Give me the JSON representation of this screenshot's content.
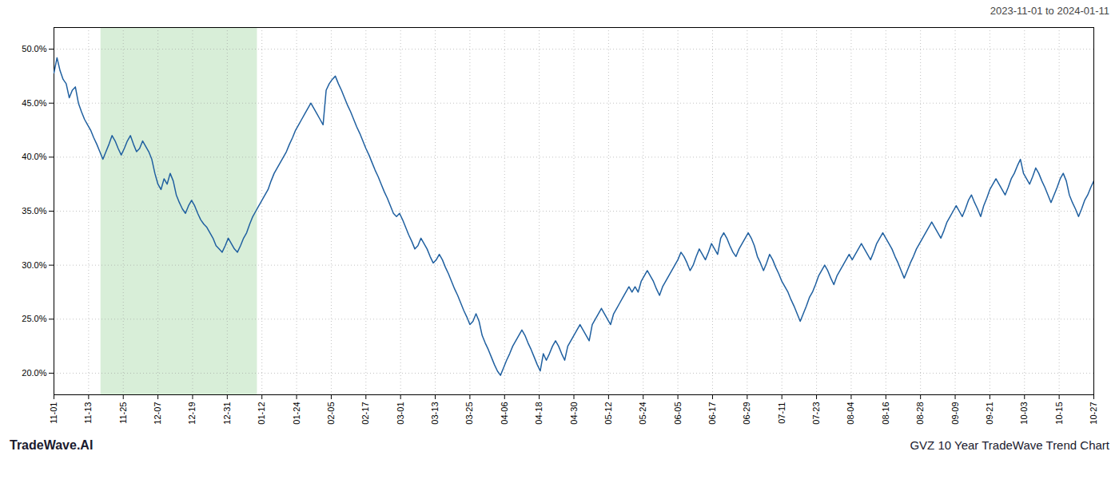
{
  "chart_data": {
    "type": "line",
    "title": "GVZ 10 Year TradeWave Trend Chart",
    "subtitle": "2023-11-01 to 2024-01-11",
    "caption": "TradeWave.AI",
    "color": "#2060a0",
    "grid": true,
    "highlight": {
      "start": 15.345,
      "end": 66.495,
      "color": "#d8eed8"
    },
    "xlim": [
      0,
      340
    ],
    "xticks": [
      {
        "value": 0,
        "label": "11-01"
      },
      {
        "value": 11.3333,
        "label": "11-13"
      },
      {
        "value": 22.6667,
        "label": "11-25"
      },
      {
        "value": 34,
        "label": "12-07"
      },
      {
        "value": 45.3333,
        "label": "12-19"
      },
      {
        "value": 56.6667,
        "label": "12-31"
      },
      {
        "value": 68,
        "label": "01-12"
      },
      {
        "value": 79.3333,
        "label": "01-24"
      },
      {
        "value": 90.6667,
        "label": "02-05"
      },
      {
        "value": 102,
        "label": "02-17"
      },
      {
        "value": 113.3333,
        "label": "03-01"
      },
      {
        "value": 124.6667,
        "label": "03-13"
      },
      {
        "value": 136,
        "label": "03-25"
      },
      {
        "value": 147.3333,
        "label": "04-06"
      },
      {
        "value": 158.6667,
        "label": "04-18"
      },
      {
        "value": 170,
        "label": "04-30"
      },
      {
        "value": 181.3333,
        "label": "05-12"
      },
      {
        "value": 192.6667,
        "label": "05-24"
      },
      {
        "value": 204,
        "label": "06-05"
      },
      {
        "value": 215.3333,
        "label": "06-17"
      },
      {
        "value": 226.6667,
        "label": "06-29"
      },
      {
        "value": 238,
        "label": "07-11"
      },
      {
        "value": 249.3333,
        "label": "07-23"
      },
      {
        "value": 260.6667,
        "label": "08-04"
      },
      {
        "value": 272,
        "label": "08-16"
      },
      {
        "value": 283.3333,
        "label": "08-28"
      },
      {
        "value": 294.6667,
        "label": "09-09"
      },
      {
        "value": 306,
        "label": "09-21"
      },
      {
        "value": 317.3333,
        "label": "10-03"
      },
      {
        "value": 328.6667,
        "label": "10-15"
      },
      {
        "value": 340,
        "label": "10-27"
      }
    ],
    "ylim": [
      18.0,
      52.0
    ],
    "yticks": [
      {
        "value": 20.0,
        "label": "20.0%"
      },
      {
        "value": 25.0,
        "label": "25.0%"
      },
      {
        "value": 30.0,
        "label": "30.0%"
      },
      {
        "value": 35.0,
        "label": "35.0%"
      },
      {
        "value": 40.0,
        "label": "40.0%"
      },
      {
        "value": 45.0,
        "label": "45.0%"
      },
      {
        "value": 50.0,
        "label": "50.0%"
      }
    ],
    "values": [
      47.8,
      49.2,
      48.0,
      47.2,
      46.8,
      45.5,
      46.2,
      46.5,
      45.0,
      44.2,
      43.5,
      43.0,
      42.5,
      41.8,
      41.2,
      40.5,
      39.8,
      40.5,
      41.2,
      42.0,
      41.5,
      40.8,
      40.2,
      40.8,
      41.5,
      42.0,
      41.2,
      40.5,
      40.8,
      41.5,
      41.0,
      40.5,
      39.8,
      38.5,
      37.5,
      37.0,
      38.0,
      37.5,
      38.5,
      37.8,
      36.5,
      35.8,
      35.2,
      34.8,
      35.5,
      36.0,
      35.5,
      34.8,
      34.2,
      33.8,
      33.5,
      33.0,
      32.5,
      31.8,
      31.5,
      31.2,
      31.8,
      32.5,
      32.0,
      31.5,
      31.2,
      31.8,
      32.5,
      33.0,
      33.8,
      34.5,
      35.0,
      35.5,
      36.0,
      36.5,
      37.0,
      37.8,
      38.5,
      39.0,
      39.5,
      40.0,
      40.5,
      41.2,
      41.8,
      42.5,
      43.0,
      43.5,
      44.0,
      44.5,
      45.0,
      44.5,
      44.0,
      43.5,
      43.0,
      46.2,
      46.8,
      47.2,
      47.5,
      46.8,
      46.2,
      45.5,
      44.8,
      44.2,
      43.5,
      42.8,
      42.2,
      41.5,
      40.8,
      40.2,
      39.5,
      38.8,
      38.2,
      37.5,
      36.8,
      36.2,
      35.5,
      34.8,
      34.5,
      34.8,
      34.2,
      33.5,
      32.8,
      32.2,
      31.5,
      31.8,
      32.5,
      32.0,
      31.5,
      30.8,
      30.2,
      30.5,
      31.0,
      30.5,
      29.8,
      29.2,
      28.5,
      27.8,
      27.2,
      26.5,
      25.8,
      25.2,
      24.5,
      24.8,
      25.5,
      24.8,
      23.5,
      22.8,
      22.2,
      21.5,
      20.8,
      20.2,
      19.8,
      20.5,
      21.2,
      21.8,
      22.5,
      23.0,
      23.5,
      24.0,
      23.5,
      22.8,
      22.2,
      21.5,
      20.8,
      20.2,
      21.8,
      21.2,
      21.8,
      22.5,
      23.0,
      22.5,
      21.8,
      21.2,
      22.5,
      23.0,
      23.5,
      24.0,
      24.5,
      24.0,
      23.5,
      23.0,
      24.5,
      25.0,
      25.5,
      26.0,
      25.5,
      25.0,
      24.5,
      25.5,
      26.0,
      26.5,
      27.0,
      27.5,
      28.0,
      27.5,
      28.0,
      27.5,
      28.5,
      29.0,
      29.5,
      29.0,
      28.5,
      27.8,
      27.2,
      28.0,
      28.5,
      29.0,
      29.5,
      30.0,
      30.5,
      31.2,
      30.8,
      30.2,
      29.5,
      30.0,
      30.8,
      31.5,
      31.0,
      30.5,
      31.2,
      32.0,
      31.5,
      31.0,
      32.5,
      33.0,
      32.5,
      31.8,
      31.2,
      30.8,
      31.5,
      32.0,
      32.5,
      33.0,
      32.5,
      31.8,
      30.8,
      30.2,
      29.5,
      30.2,
      31.0,
      30.5,
      29.8,
      29.2,
      28.5,
      28.0,
      27.5,
      26.8,
      26.2,
      25.5,
      24.8,
      25.5,
      26.2,
      27.0,
      27.5,
      28.2,
      29.0,
      29.5,
      30.0,
      29.5,
      28.8,
      28.2,
      29.0,
      29.5,
      30.0,
      30.5,
      31.0,
      30.5,
      31.0,
      31.5,
      32.0,
      31.5,
      31.0,
      30.5,
      31.2,
      32.0,
      32.5,
      33.0,
      32.5,
      32.0,
      31.5,
      30.8,
      30.2,
      29.5,
      28.8,
      29.5,
      30.2,
      30.8,
      31.5,
      32.0,
      32.5,
      33.0,
      33.5,
      34.0,
      33.5,
      33.0,
      32.5,
      33.2,
      34.0,
      34.5,
      35.0,
      35.5,
      35.0,
      34.5,
      35.2,
      36.0,
      36.5,
      35.8,
      35.2,
      34.5,
      35.5,
      36.2,
      37.0,
      37.5,
      38.0,
      37.5,
      37.0,
      36.5,
      37.2,
      38.0,
      38.5,
      39.2,
      39.8,
      38.5,
      38.0,
      37.5,
      38.2,
      39.0,
      38.5,
      37.8,
      37.2,
      36.5,
      35.8,
      36.5,
      37.2,
      38.0,
      38.5,
      37.8,
      36.5,
      35.8,
      35.2,
      34.5,
      35.2,
      36.0,
      36.5,
      37.2,
      37.8
    ]
  }
}
